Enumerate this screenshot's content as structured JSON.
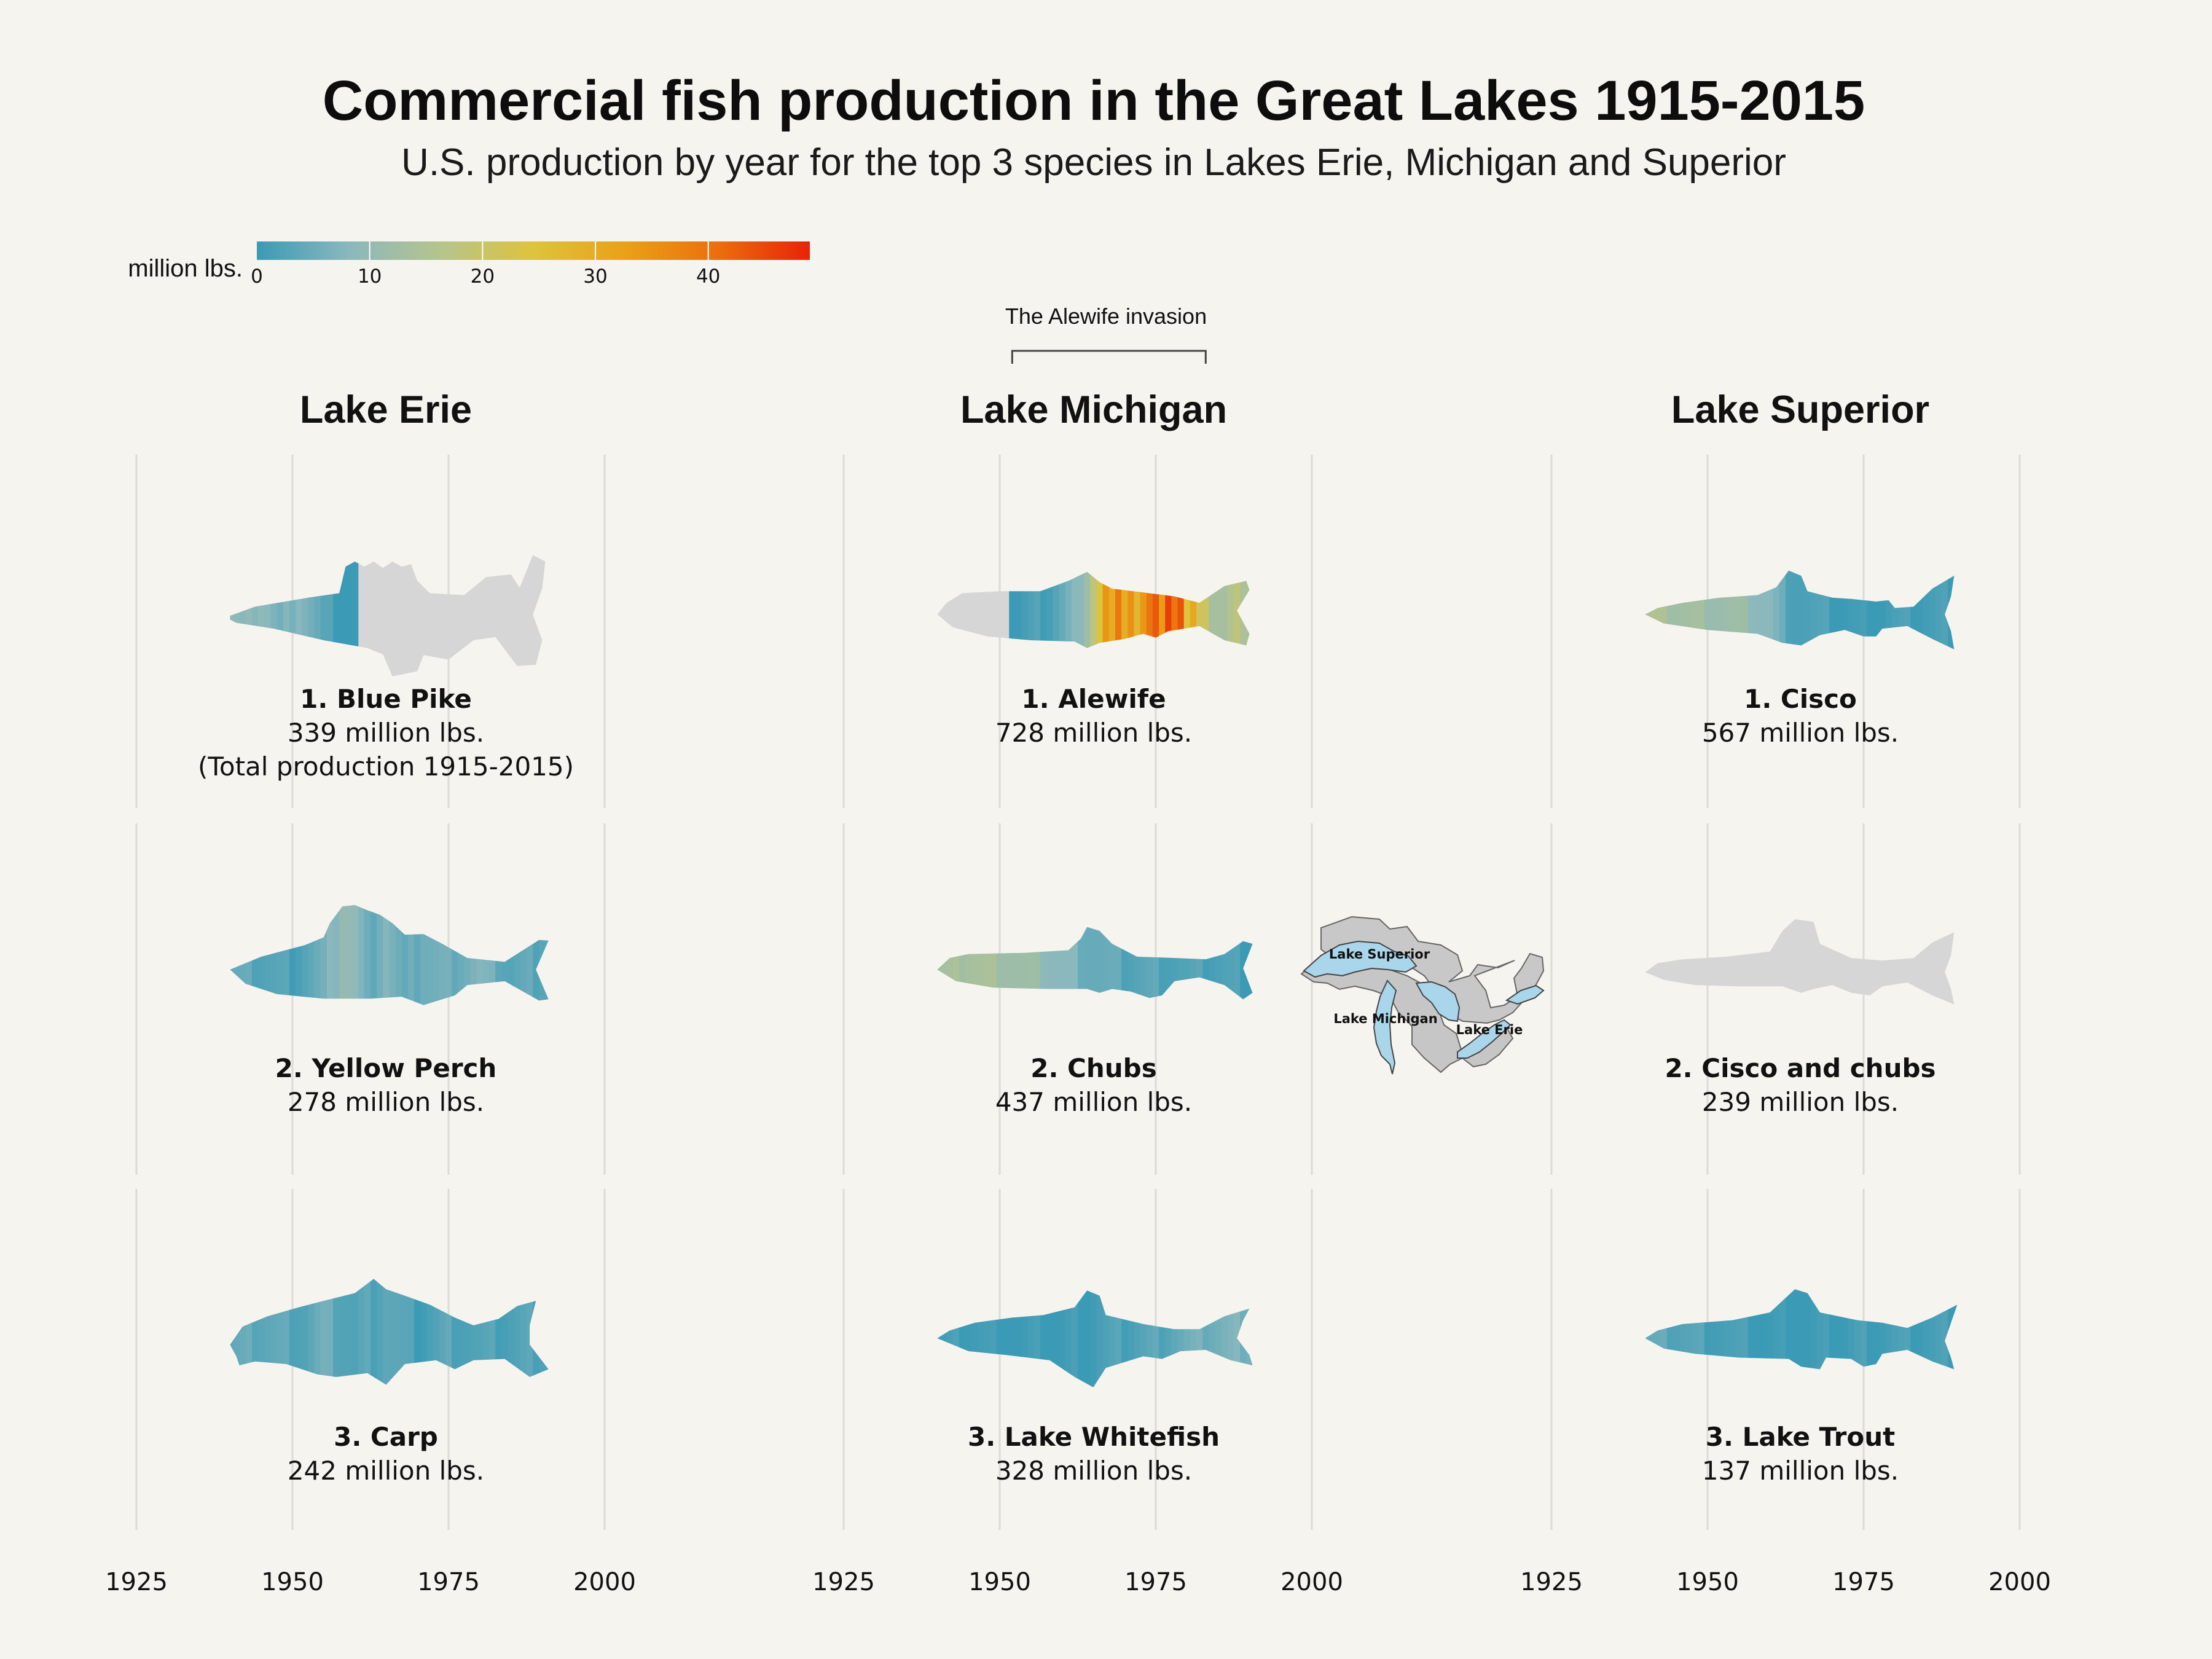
{
  "title": "Commercial fish production in the Great Lakes 1915-2015",
  "subtitle": "U.S. production by year for the top 3 species in Lakes Erie, Michigan and Superior",
  "legend": {
    "label": "million lbs.",
    "ticks": [
      "0",
      "10",
      "20",
      "30",
      "40"
    ],
    "tick_values": [
      0,
      10,
      20,
      30,
      40
    ],
    "max": 49,
    "colors": [
      "#3b9ab5",
      "#8ab8bd",
      "#b6c48d",
      "#ddc43c",
      "#e9a118",
      "#eb6f0d",
      "#e92208"
    ]
  },
  "annotation": {
    "text": "The Alewife invasion",
    "start_year": 1952,
    "end_year": 1983
  },
  "x_axis": {
    "ticks": [
      "1925",
      "1950",
      "1975",
      "2000"
    ],
    "tick_years": [
      1925,
      1950,
      1975,
      2000
    ],
    "year_range": [
      1915,
      2015
    ]
  },
  "no_data_color": "#d6d6d6",
  "map": {
    "labels": [
      "Lake Superior",
      "Lake Michigan",
      "Lake Erie"
    ]
  },
  "chart_data": {
    "type": "heatmap",
    "title": "Commercial fish production in the Great Lakes 1915-2015",
    "subtitle": "U.S. production by year for the top 3 species in Lakes Erie, Michigan and Superior",
    "value_unit": "million lbs.",
    "color_range": [
      0,
      49
    ],
    "lakes": [
      {
        "name": "Lake Erie",
        "species": [
          {
            "rank": "1. Blue Pike",
            "total": "339 million lbs.",
            "note": "(Total production 1915-2015)",
            "fish": "pike",
            "keyframes": [
              [
                1915,
                14
              ],
              [
                1918,
                8
              ],
              [
                1921,
                18
              ],
              [
                1924,
                6
              ],
              [
                1927,
                12
              ],
              [
                1930,
                16
              ],
              [
                1933,
                9
              ],
              [
                1936,
                13
              ],
              [
                1939,
                11
              ],
              [
                1942,
                7
              ],
              [
                1945,
                10
              ],
              [
                1948,
                5
              ],
              [
                1951,
                9
              ],
              [
                1954,
                4
              ],
              [
                1955,
                2
              ],
              [
                1957,
                1
              ],
              [
                1958,
                0
              ],
              [
                1960,
                0
              ]
            ],
            "data_end": 1960
          },
          {
            "rank": "2. Yellow Perch",
            "total": "278 million lbs.",
            "fish": "perch",
            "keyframes": [
              [
                1915,
                2
              ],
              [
                1925,
                3
              ],
              [
                1935,
                3
              ],
              [
                1940,
                4
              ],
              [
                1950,
                2
              ],
              [
                1955,
                5
              ],
              [
                1958,
                11
              ],
              [
                1960,
                9
              ],
              [
                1962,
                4
              ],
              [
                1965,
                8
              ],
              [
                1968,
                3
              ],
              [
                1971,
                6
              ],
              [
                1975,
                5
              ],
              [
                1980,
                7
              ],
              [
                1985,
                3
              ],
              [
                1990,
                4
              ],
              [
                1995,
                2
              ],
              [
                2000,
                2
              ],
              [
                2005,
                3
              ],
              [
                2010,
                2
              ],
              [
                2015,
                2
              ]
            ]
          },
          {
            "rank": "3. Carp",
            "total": "242 million lbs.",
            "fish": "carp",
            "keyframes": [
              [
                1915,
                3
              ],
              [
                1925,
                4
              ],
              [
                1935,
                3
              ],
              [
                1945,
                4
              ],
              [
                1952,
                3
              ],
              [
                1955,
                5
              ],
              [
                1960,
                2
              ],
              [
                1965,
                4
              ],
              [
                1970,
                1
              ],
              [
                1975,
                3
              ],
              [
                1980,
                2
              ],
              [
                1985,
                2
              ],
              [
                1990,
                3
              ],
              [
                1995,
                2
              ],
              [
                2000,
                1
              ],
              [
                2005,
                2
              ],
              [
                2010,
                2
              ],
              [
                2015,
                3
              ]
            ]
          }
        ]
      },
      {
        "name": "Lake Michigan",
        "species": [
          {
            "rank": "1. Alewife",
            "total": "728 million lbs.",
            "fish": "alewife",
            "keyframes": [
              [
                1952,
                0
              ],
              [
                1955,
                1
              ],
              [
                1958,
                2
              ],
              [
                1960,
                4
              ],
              [
                1962,
                7
              ],
              [
                1964,
                13
              ],
              [
                1966,
                24
              ],
              [
                1967,
                34
              ],
              [
                1968,
                29
              ],
              [
                1969,
                38
              ],
              [
                1970,
                31
              ],
              [
                1971,
                36
              ],
              [
                1972,
                28
              ],
              [
                1973,
                34
              ],
              [
                1974,
                39
              ],
              [
                1975,
                42
              ],
              [
                1976,
                35
              ],
              [
                1977,
                47
              ],
              [
                1978,
                40
              ],
              [
                1979,
                44
              ],
              [
                1980,
                24
              ],
              [
                1981,
                30
              ],
              [
                1982,
                20
              ],
              [
                1983,
                22
              ],
              [
                1984,
                14
              ],
              [
                1986,
                13
              ],
              [
                1988,
                17
              ],
              [
                1990,
                15
              ],
              [
                1992,
                10
              ],
              [
                1994,
                8
              ],
              [
                1996,
                22
              ],
              [
                1998,
                7
              ],
              [
                2000,
                15
              ],
              [
                2002,
                9
              ],
              [
                2004,
                14
              ],
              [
                2006,
                8
              ],
              [
                2010,
                10
              ],
              [
                2015,
                12
              ]
            ],
            "data_start": 1952
          },
          {
            "rank": "2. Chubs",
            "total": "437 million lbs.",
            "fish": "chub",
            "keyframes": [
              [
                1915,
                4
              ],
              [
                1920,
                6
              ],
              [
                1925,
                9
              ],
              [
                1930,
                13
              ],
              [
                1935,
                14
              ],
              [
                1940,
                12
              ],
              [
                1945,
                14
              ],
              [
                1950,
                13
              ],
              [
                1955,
                11
              ],
              [
                1960,
                8
              ],
              [
                1965,
                5
              ],
              [
                1970,
                3
              ],
              [
                1975,
                3
              ],
              [
                1980,
                2
              ],
              [
                1985,
                2
              ],
              [
                1990,
                1
              ],
              [
                1995,
                1
              ],
              [
                2000,
                1
              ],
              [
                2005,
                0
              ],
              [
                2010,
                0
              ],
              [
                2015,
                0
              ]
            ]
          },
          {
            "rank": "3. Lake Whitefish",
            "total": "328 million lbs.",
            "fish": "whitefish",
            "keyframes": [
              [
                1915,
                2
              ],
              [
                1920,
                4
              ],
              [
                1925,
                5
              ],
              [
                1930,
                6
              ],
              [
                1932,
                3
              ],
              [
                1935,
                1
              ],
              [
                1940,
                0
              ],
              [
                1945,
                1
              ],
              [
                1950,
                0
              ],
              [
                1955,
                0
              ],
              [
                1960,
                0
              ],
              [
                1965,
                1
              ],
              [
                1970,
                2
              ],
              [
                1975,
                3
              ],
              [
                1980,
                5
              ],
              [
                1985,
                6
              ],
              [
                1990,
                7
              ],
              [
                1995,
                6
              ],
              [
                2000,
                6
              ],
              [
                2005,
                5
              ],
              [
                2010,
                5
              ],
              [
                2015,
                4
              ]
            ]
          }
        ]
      },
      {
        "name": "Lake Superior",
        "species": [
          {
            "rank": "1. Cisco",
            "total": "567 million lbs.",
            "fish": "cisco",
            "keyframes": [
              [
                1915,
                17
              ],
              [
                1920,
                15
              ],
              [
                1925,
                13
              ],
              [
                1930,
                14
              ],
              [
                1935,
                12
              ],
              [
                1940,
                15
              ],
              [
                1945,
                13
              ],
              [
                1950,
                12
              ],
              [
                1955,
                11
              ],
              [
                1960,
                8
              ],
              [
                1962,
                4
              ],
              [
                1965,
                2
              ],
              [
                1970,
                1
              ],
              [
                1975,
                0
              ],
              [
                1980,
                1
              ],
              [
                1985,
                1
              ],
              [
                1990,
                1
              ],
              [
                1995,
                2
              ],
              [
                2000,
                1
              ],
              [
                2005,
                2
              ],
              [
                2010,
                1
              ],
              [
                2015,
                1
              ]
            ]
          },
          {
            "rank": "2. Cisco and chubs",
            "total": "239 million lbs.",
            "fish": "cisco-chub",
            "keyframes": [
              [
                1915,
                20
              ],
              [
                1917,
                17
              ],
              [
                1919,
                19
              ]
            ],
            "data_end": 1919
          },
          {
            "rank": "3. Lake Trout",
            "total": "137 million lbs.",
            "fish": "trout",
            "keyframes": [
              [
                1915,
                4
              ],
              [
                1920,
                4
              ],
              [
                1925,
                5
              ],
              [
                1930,
                3
              ],
              [
                1935,
                5
              ],
              [
                1940,
                4
              ],
              [
                1945,
                3
              ],
              [
                1950,
                2
              ],
              [
                1955,
                1
              ],
              [
                1960,
                0
              ],
              [
                1965,
                0
              ],
              [
                1970,
                0
              ],
              [
                1975,
                1
              ],
              [
                1980,
                1
              ],
              [
                1985,
                1
              ],
              [
                1990,
                1
              ],
              [
                1995,
                1
              ],
              [
                2000,
                1
              ],
              [
                2005,
                1
              ],
              [
                2010,
                1
              ],
              [
                2015,
                1
              ]
            ]
          }
        ]
      }
    ]
  }
}
